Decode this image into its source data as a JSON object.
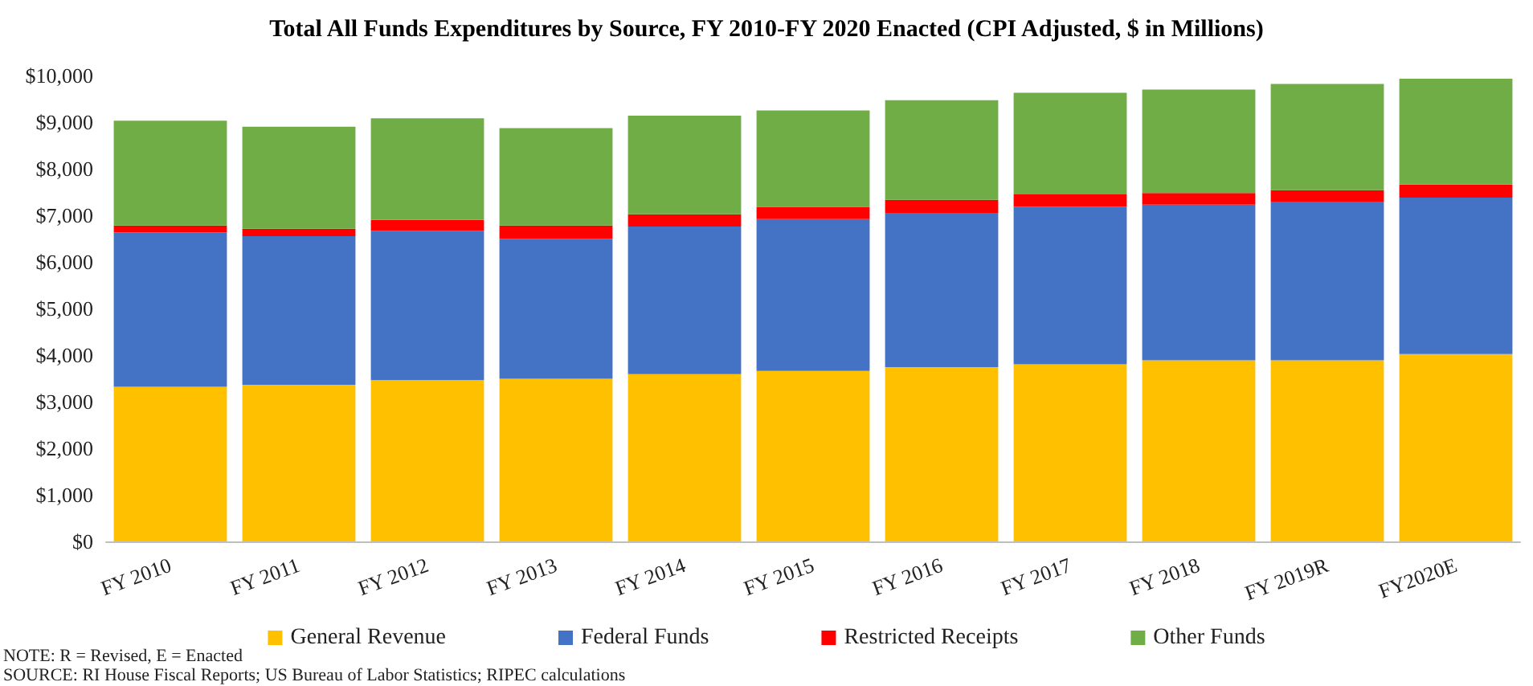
{
  "chart_data": {
    "type": "bar",
    "title": "Total All Funds Expenditures by Source, FY 2010-FY 2020 Enacted (CPI Adjusted, $ in Millions)",
    "categories": [
      "FY 2010",
      "FY 2011",
      "FY 2012",
      "FY 2013",
      "FY 2014",
      "FY 2015",
      "FY 2016",
      "FY 2017",
      "FY 2018",
      "FY 2019R",
      "FY2020E"
    ],
    "stacked": true,
    "series": [
      {
        "name": "General Revenue",
        "color": "#ffc000",
        "values": [
          3320,
          3360,
          3460,
          3490,
          3590,
          3660,
          3740,
          3800,
          3890,
          3890,
          4020
        ]
      },
      {
        "name": "Federal Funds",
        "color": "#4472c4",
        "values": [
          3310,
          3190,
          3210,
          3000,
          3170,
          3260,
          3310,
          3380,
          3340,
          3390,
          3360
        ]
      },
      {
        "name": "Restricted Receipts",
        "color": "#ff0000",
        "values": [
          150,
          160,
          230,
          290,
          260,
          260,
          280,
          270,
          250,
          260,
          280
        ]
      },
      {
        "name": "Other Funds",
        "color": "#70ad47",
        "values": [
          2250,
          2190,
          2180,
          2090,
          2120,
          2070,
          2140,
          2180,
          2220,
          2280,
          2270
        ]
      }
    ],
    "ylim": [
      0,
      10000
    ],
    "yticks": [
      {
        "value": 0,
        "label": "$0"
      },
      {
        "value": 1000,
        "label": "$1,000"
      },
      {
        "value": 2000,
        "label": "$2,000"
      },
      {
        "value": 3000,
        "label": "$3,000"
      },
      {
        "value": 4000,
        "label": "$4,000"
      },
      {
        "value": 5000,
        "label": "$5,000"
      },
      {
        "value": 6000,
        "label": "$6,000"
      },
      {
        "value": 7000,
        "label": "$7,000"
      },
      {
        "value": 8000,
        "label": "$8,000"
      },
      {
        "value": 9000,
        "label": "$9,000"
      },
      {
        "value": 10000,
        "label": "$10,000"
      }
    ],
    "grid": false,
    "legend": "bottom",
    "annotations": [
      "NOTE: R = Revised, E = Enacted",
      "SOURCE: RI House Fiscal Reports; US Bureau of Labor Statistics; RIPEC calculations"
    ]
  }
}
